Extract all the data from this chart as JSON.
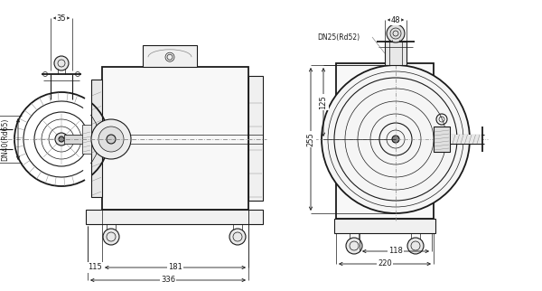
{
  "bg_color": "#ffffff",
  "line_color": "#1a1a1a",
  "gray": "#888888",
  "lightgray": "#aaaaaa",
  "annotations": {
    "dim_35": "35",
    "dim_115": "115",
    "dim_181": "181",
    "dim_336": "336",
    "dim_DN40": "DN40(Rd65)",
    "dim_48": "48",
    "dim_125": "125",
    "dim_255": "255",
    "dim_118": "118",
    "dim_220": "220",
    "dim_DN25": "DN25(Rd52)"
  }
}
